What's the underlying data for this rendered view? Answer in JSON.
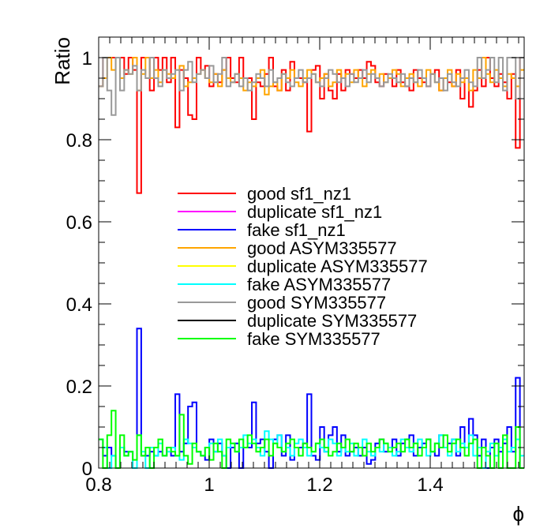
{
  "chart_data": {
    "type": "line",
    "step": true,
    "title": "",
    "xlabel": "ϕ",
    "ylabel": "Ratio",
    "xlim": [
      0.8,
      1.57
    ],
    "ylim": [
      0,
      1.05
    ],
    "x_ticks": [
      0.8,
      1.0,
      1.2,
      1.4
    ],
    "x_tick_labels": [
      "0.8",
      "1",
      "1.2",
      "1.4"
    ],
    "y_ticks": [
      0,
      0.2,
      0.4,
      0.6,
      0.8,
      1.0
    ],
    "y_tick_labels": [
      "0",
      "0.2",
      "0.4",
      "0.6",
      "0.8",
      "1"
    ],
    "grid": false,
    "legend_position": "center",
    "bins": {
      "start": 0.8,
      "end": 1.57,
      "count": 100
    },
    "series": [
      {
        "name": "good sf1_nz1",
        "color": "#ff0000",
        "values": [
          0.93,
          1.0,
          1.0,
          1.0,
          1.0,
          1.0,
          0.96,
          1.0,
          0.97,
          0.67,
          1.0,
          1.0,
          0.92,
          1.0,
          0.97,
          1.0,
          0.94,
          1.0,
          0.83,
          0.97,
          0.95,
          0.86,
          0.85,
          1.0,
          0.97,
          0.98,
          0.93,
          0.96,
          0.94,
          0.97,
          1.0,
          0.95,
          0.94,
          1.0,
          0.95,
          0.95,
          0.85,
          0.94,
          0.93,
          0.96,
          1.0,
          0.93,
          0.92,
          0.97,
          0.92,
          0.99,
          0.95,
          0.95,
          0.94,
          0.82,
          0.97,
          0.98,
          0.9,
          0.96,
          0.92,
          0.9,
          0.96,
          0.92,
          0.97,
          0.96,
          0.95,
          0.97,
          0.95,
          0.99,
          0.98,
          0.94,
          0.93,
          0.96,
          0.95,
          0.93,
          0.97,
          0.94,
          0.93,
          0.92,
          0.97,
          0.95,
          0.94,
          0.93,
          0.96,
          0.97,
          0.92,
          0.95,
          0.94,
          0.93,
          0.97,
          0.9,
          0.95,
          0.88,
          0.92,
          0.97,
          0.93,
          1.0,
          0.95,
          0.93,
          0.96,
          0.94,
          0.9,
          0.96,
          0.78,
          1.0
        ]
      },
      {
        "name": "duplicate sf1_nz1",
        "color": "#ff00ff",
        "values": []
      },
      {
        "name": "fake sf1_nz1",
        "color": "#0000ff",
        "values": [
          0.07,
          0.03,
          0.05,
          0.03,
          0.0,
          0.05,
          0.04,
          0.04,
          0.0,
          0.34,
          0.03,
          0.03,
          0.04,
          0.03,
          0.04,
          0.03,
          0.05,
          0.03,
          0.18,
          0.04,
          0.06,
          0.15,
          0.16,
          0.04,
          0.03,
          0.02,
          0.07,
          0.04,
          0.06,
          0.03,
          0.0,
          0.05,
          0.06,
          0.0,
          0.05,
          0.05,
          0.16,
          0.06,
          0.07,
          0.04,
          0.0,
          0.07,
          0.08,
          0.03,
          0.08,
          0.02,
          0.05,
          0.05,
          0.06,
          0.18,
          0.03,
          0.02,
          0.1,
          0.04,
          0.08,
          0.1,
          0.04,
          0.08,
          0.03,
          0.04,
          0.05,
          0.03,
          0.05,
          0.01,
          0.02,
          0.06,
          0.07,
          0.04,
          0.05,
          0.07,
          0.03,
          0.06,
          0.07,
          0.08,
          0.03,
          0.05,
          0.06,
          0.07,
          0.04,
          0.03,
          0.08,
          0.05,
          0.06,
          0.07,
          0.03,
          0.1,
          0.05,
          0.12,
          0.08,
          0.03,
          0.07,
          0.0,
          0.05,
          0.07,
          0.04,
          0.06,
          0.1,
          0.04,
          0.22,
          0.0
        ]
      },
      {
        "name": "good ASYM335577",
        "color": "#ffa500",
        "values": [
          0.93,
          0.95,
          1.0,
          0.97,
          1.0,
          0.95,
          0.97,
          0.96,
          1.0,
          0.92,
          0.96,
          1.0,
          0.95,
          0.97,
          0.94,
          0.97,
          0.96,
          0.95,
          0.97,
          0.98,
          0.93,
          0.94,
          0.95,
          0.96,
          0.97,
          0.95,
          0.94,
          0.96,
          0.93,
          0.97,
          0.95,
          0.94,
          0.96,
          0.95,
          0.92,
          0.94,
          0.93,
          0.95,
          0.97,
          0.91,
          0.93,
          0.94,
          0.92,
          0.96,
          0.95,
          0.97,
          0.94,
          0.93,
          0.95,
          0.97,
          0.96,
          0.94,
          0.95,
          0.96,
          0.93,
          0.94,
          0.97,
          0.95,
          0.96,
          0.94,
          0.97,
          0.95,
          0.93,
          0.96,
          0.97,
          0.95,
          0.96,
          0.94,
          0.95,
          0.97,
          0.96,
          0.93,
          0.95,
          0.96,
          0.94,
          0.93,
          0.95,
          0.97,
          0.96,
          0.94,
          0.92,
          0.95,
          0.97,
          0.93,
          0.96,
          0.94,
          0.95,
          0.92,
          0.97,
          0.95,
          1.0,
          0.96,
          0.94,
          0.97,
          0.95,
          0.93,
          0.96,
          0.95,
          0.93,
          0.97
        ]
      },
      {
        "name": "duplicate ASYM335577",
        "color": "#ffff00",
        "values": []
      },
      {
        "name": "fake ASYM335577",
        "color": "#00ffff",
        "values": [
          0.07,
          0.05,
          0.0,
          0.03,
          0.0,
          0.05,
          0.03,
          0.04,
          0.0,
          0.08,
          0.04,
          0.0,
          0.05,
          0.03,
          0.06,
          0.03,
          0.04,
          0.05,
          0.03,
          0.02,
          0.07,
          0.06,
          0.05,
          0.04,
          0.03,
          0.05,
          0.06,
          0.04,
          0.07,
          0.03,
          0.05,
          0.06,
          0.04,
          0.05,
          0.08,
          0.06,
          0.07,
          0.05,
          0.03,
          0.09,
          0.07,
          0.06,
          0.08,
          0.04,
          0.05,
          0.03,
          0.06,
          0.07,
          0.05,
          0.03,
          0.04,
          0.06,
          0.05,
          0.04,
          0.07,
          0.06,
          0.03,
          0.05,
          0.04,
          0.06,
          0.03,
          0.05,
          0.07,
          0.04,
          0.03,
          0.05,
          0.04,
          0.06,
          0.05,
          0.03,
          0.04,
          0.07,
          0.05,
          0.04,
          0.06,
          0.07,
          0.05,
          0.03,
          0.04,
          0.06,
          0.08,
          0.05,
          0.03,
          0.07,
          0.04,
          0.06,
          0.05,
          0.08,
          0.03,
          0.05,
          0.0,
          0.04,
          0.06,
          0.03,
          0.05,
          0.07,
          0.04,
          0.05,
          0.07,
          0.03
        ]
      },
      {
        "name": "good SYM335577",
        "color": "#999999",
        "values": [
          0.93,
          1.0,
          0.92,
          0.86,
          1.0,
          0.92,
          0.97,
          0.96,
          0.98,
          0.92,
          0.97,
          0.95,
          1.0,
          0.95,
          0.93,
          0.97,
          0.95,
          0.96,
          0.97,
          0.92,
          0.97,
          0.99,
          0.94,
          0.96,
          0.97,
          0.95,
          0.98,
          0.94,
          0.96,
          1.0,
          0.93,
          0.94,
          0.96,
          0.93,
          0.95,
          0.92,
          0.94,
          0.96,
          0.95,
          0.93,
          0.97,
          0.94,
          0.95,
          0.96,
          0.94,
          0.93,
          0.95,
          0.97,
          0.94,
          0.95,
          0.96,
          0.94,
          0.93,
          0.95,
          0.97,
          0.96,
          0.94,
          0.95,
          0.93,
          0.96,
          0.94,
          0.95,
          0.97,
          0.94,
          0.96,
          0.95,
          0.93,
          0.94,
          0.96,
          0.95,
          0.94,
          0.96,
          0.93,
          0.95,
          0.94,
          0.97,
          0.95,
          0.93,
          0.96,
          0.94,
          0.95,
          0.92,
          0.96,
          0.94,
          0.93,
          0.95,
          0.97,
          0.94,
          0.93,
          1.0,
          0.95,
          0.97,
          1.0,
          0.94,
          1.0,
          0.92,
          1.0,
          1.0,
          0.9,
          1.0
        ]
      },
      {
        "name": "duplicate SYM335577",
        "color": "#000000",
        "values": []
      },
      {
        "name": "fake SYM335577",
        "color": "#00ff00",
        "values": [
          0.07,
          0.0,
          0.08,
          0.14,
          0.0,
          0.08,
          0.03,
          0.04,
          0.02,
          0.08,
          0.03,
          0.05,
          0.0,
          0.05,
          0.07,
          0.03,
          0.05,
          0.04,
          0.03,
          0.13,
          0.03,
          0.01,
          0.06,
          0.04,
          0.03,
          0.05,
          0.02,
          0.06,
          0.04,
          0.0,
          0.07,
          0.06,
          0.04,
          0.07,
          0.05,
          0.08,
          0.06,
          0.04,
          0.05,
          0.07,
          0.03,
          0.06,
          0.05,
          0.04,
          0.06,
          0.07,
          0.05,
          0.03,
          0.06,
          0.05,
          0.04,
          0.06,
          0.07,
          0.05,
          0.03,
          0.04,
          0.06,
          0.05,
          0.07,
          0.04,
          0.06,
          0.05,
          0.03,
          0.06,
          0.04,
          0.05,
          0.07,
          0.06,
          0.04,
          0.05,
          0.06,
          0.04,
          0.07,
          0.05,
          0.06,
          0.03,
          0.05,
          0.07,
          0.04,
          0.06,
          0.05,
          0.08,
          0.04,
          0.06,
          0.07,
          0.05,
          0.03,
          0.06,
          0.07,
          0.0,
          0.05,
          0.03,
          0.0,
          0.06,
          0.0,
          0.08,
          0.0,
          0.0,
          0.1,
          0.0
        ]
      }
    ]
  }
}
